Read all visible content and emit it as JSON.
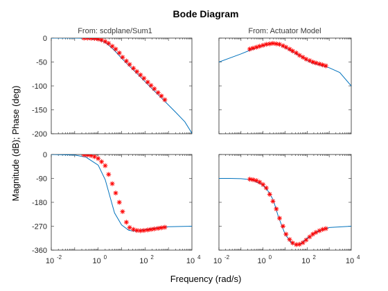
{
  "chart_data": {
    "type": "line",
    "title": "Bode Diagram",
    "xlabel": "Frequency (rad/s)",
    "ylabel": "Magnitude (dB); Phase (deg)",
    "x_scale": "log",
    "xlim": [
      0.01,
      10000
    ],
    "x_ticks": [
      {
        "value": 0.01,
        "base": "10",
        "exp": "-2"
      },
      {
        "value": 1,
        "base": "10",
        "exp": "0"
      },
      {
        "value": 100,
        "base": "10",
        "exp": "2"
      },
      {
        "value": 10000,
        "base": "10",
        "exp": "4"
      }
    ],
    "columns": [
      "From: scdplane/Sum1",
      "From: Actuator Model"
    ],
    "rows": [
      {
        "quantity": "magnitude",
        "ylim": [
          -200,
          0
        ],
        "yticks": [
          "0",
          "-50",
          "-100",
          "-150",
          "-200"
        ],
        "ytick_values": [
          0,
          -50,
          -100,
          -150,
          -200
        ]
      },
      {
        "quantity": "phase",
        "ylim": [
          -360,
          0
        ],
        "yticks": [
          "0",
          "-90",
          "-180",
          "-270",
          "-360"
        ],
        "ytick_values": [
          0,
          -90,
          -180,
          -270,
          -360
        ]
      }
    ],
    "grid": false,
    "line_color": "#0072bd",
    "marker_color": "#ff0000",
    "series": [
      {
        "panel": [
          0,
          0
        ],
        "style": "line",
        "x": [
          0.01,
          0.1,
          0.3,
          1,
          2,
          3,
          5,
          10,
          20,
          50,
          100,
          200,
          500,
          1000,
          2000,
          5000,
          10000
        ],
        "y": [
          0,
          0,
          -0.5,
          -3,
          -9,
          -16,
          -26,
          -42,
          -57,
          -76,
          -91,
          -106,
          -125,
          -140,
          -155,
          -175,
          -199
        ]
      },
      {
        "panel": [
          0,
          0
        ],
        "style": "markers",
        "x": [
          0.25,
          0.35,
          0.5,
          0.7,
          1.0,
          1.4,
          2.0,
          2.8,
          4.0,
          5.6,
          8.0,
          11,
          16,
          22,
          32,
          45,
          64,
          90,
          130,
          180,
          250,
          360,
          500,
          700
        ],
        "y": [
          0,
          0,
          -0.3,
          -0.8,
          -2,
          -4,
          -7,
          -11,
          -17,
          -23,
          -31,
          -40,
          -48,
          -55,
          -63,
          -70,
          -77,
          -84,
          -92,
          -99,
          -106,
          -114,
          -121,
          -129
        ]
      },
      {
        "panel": [
          0,
          1
        ],
        "style": "line",
        "x": [
          0.01,
          0.1,
          0.3,
          1,
          2,
          3,
          5,
          10,
          20,
          50,
          100,
          200,
          500,
          1000,
          3000,
          10000
        ],
        "y": [
          -50,
          -33,
          -24,
          -16,
          -12,
          -11,
          -13,
          -20,
          -28,
          -38,
          -47,
          -53,
          -58,
          -62,
          -72,
          -100
        ]
      },
      {
        "panel": [
          0,
          1
        ],
        "style": "markers",
        "x": [
          0.25,
          0.35,
          0.5,
          0.7,
          1.0,
          1.4,
          2.0,
          2.8,
          4.0,
          5.6,
          8.0,
          11,
          16,
          22,
          32,
          45,
          64,
          90,
          130,
          180,
          250,
          360,
          500,
          700
        ],
        "y": [
          -23,
          -21,
          -19,
          -17,
          -15,
          -13,
          -12,
          -11,
          -12,
          -13,
          -16,
          -19,
          -23,
          -27,
          -31,
          -36,
          -40,
          -44,
          -47,
          -50,
          -52,
          -54,
          -56,
          -58
        ]
      },
      {
        "panel": [
          1,
          0
        ],
        "style": "line",
        "x": [
          0.01,
          0.1,
          0.3,
          1,
          2,
          3,
          5,
          10,
          20,
          30,
          50,
          100,
          200,
          500,
          1000,
          10000
        ],
        "y": [
          0,
          -2,
          -10,
          -40,
          -95,
          -150,
          -220,
          -265,
          -285,
          -288,
          -287,
          -283,
          -279,
          -274,
          -272,
          -270
        ]
      },
      {
        "panel": [
          1,
          0
        ],
        "style": "markers",
        "x": [
          0.25,
          0.35,
          0.5,
          0.7,
          1.0,
          1.4,
          2.0,
          2.8,
          4.0,
          5.6,
          8.0,
          11,
          16,
          22,
          32,
          45,
          64,
          90,
          130,
          180,
          250,
          360,
          500,
          700
        ],
        "y": [
          -1,
          -2,
          -4,
          -8,
          -15,
          -27,
          -42,
          -75,
          -110,
          -145,
          -180,
          -215,
          -255,
          -275,
          -282,
          -286,
          -287,
          -286,
          -284,
          -282,
          -280,
          -278,
          -276,
          -274
        ]
      },
      {
        "panel": [
          1,
          1
        ],
        "style": "line",
        "x": [
          0.01,
          0.03,
          0.1,
          0.3,
          1,
          2,
          3,
          5,
          10,
          20,
          30,
          50,
          100,
          300,
          1000,
          10000
        ],
        "y": [
          -90,
          -90,
          -91,
          -95,
          -115,
          -145,
          -175,
          -235,
          -300,
          -335,
          -340,
          -337,
          -315,
          -290,
          -275,
          -270
        ]
      },
      {
        "panel": [
          1,
          1
        ],
        "style": "markers",
        "x": [
          0.25,
          0.35,
          0.5,
          0.7,
          1.0,
          1.4,
          2.0,
          2.8,
          4.0,
          5.6,
          8.0,
          11,
          16,
          22,
          32,
          45,
          64,
          90,
          130,
          180,
          250,
          360,
          500,
          700
        ],
        "y": [
          -93,
          -95,
          -98,
          -104,
          -113,
          -126,
          -150,
          -176,
          -205,
          -240,
          -270,
          -300,
          -320,
          -333,
          -339,
          -338,
          -332,
          -322,
          -310,
          -300,
          -293,
          -287,
          -282,
          -279
        ]
      }
    ]
  }
}
